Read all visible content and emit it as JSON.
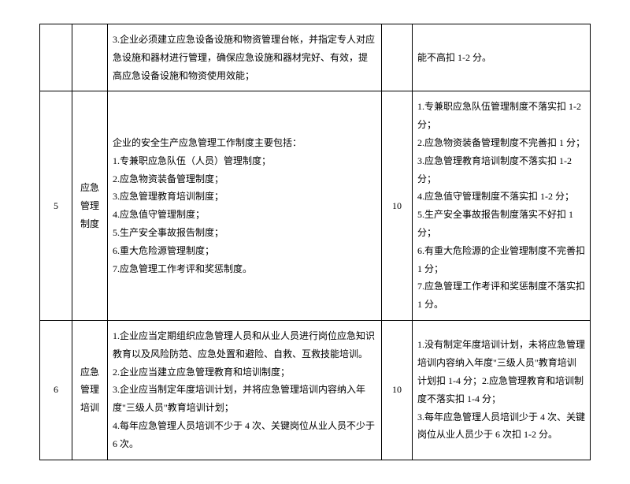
{
  "rows": [
    {
      "num": "",
      "cat": "",
      "desc_intro": "",
      "desc_items": [
        "3.企业必须建立应急设备设施和物资管理台帐，并指定专人对应急设施和器材进行管理，确保应急设施和器材完好、有效，提高应急设备设施和物资使用效能；"
      ],
      "score": "",
      "criteria_items": [
        "能不高扣 1-2 分。"
      ]
    },
    {
      "num": "5",
      "cat": "应急管理制度",
      "desc_intro": "企业的安全生产应急管理工作制度主要包括：",
      "desc_items": [
        "1.专兼职应急队伍（人员）管理制度；",
        "2.应急物资装备管理制度；",
        "3.应急管理教育培训制度；",
        "4.应急值守管理制度；",
        "5.生产安全事故报告制度；",
        "6.重大危险源管理制度；",
        "7.应急管理工作考评和奖惩制度。"
      ],
      "score": "10",
      "criteria_items": [
        "1.专兼职应急队伍管理制度不落实扣 1-2 分；",
        "2.应急物资装备管理制度不完善扣 1 分；",
        "3.应急管理教育培训制度不落实扣 1-2 分；",
        "4.应急值守管理制度不落实扣 1-2 分；",
        "5.生产安全事故报告制度落实不好扣 1 分；",
        "6.有重大危险源的企业管理制度不完善扣 1 分；",
        "7.应急管理工作考评和奖惩制度不落实扣 1 分。"
      ]
    },
    {
      "num": "6",
      "cat": "应急管理培训",
      "desc_intro": "",
      "desc_items": [
        "1.企业应当定期组织应急管理人员和从业人员进行岗位应急知识教育以及风险防范、应急处置和避险、自救、互救技能培训。",
        "2.企业应当建立应急管理教育和培训制度；",
        "3.企业应当制定年度培训计划，并将应急管理培训内容纳入年度\"三级人员\"教育培训计划；",
        "4.每年应急管理人员培训不少于 4 次、关键岗位从业人员不少于6 次。"
      ],
      "score": "10",
      "criteria_items": [
        "1.没有制定年度培训计划，未将应急管理培训内容纳入年度\"三级人员\"教育培训计划扣 1-4 分；2.应急管理教育和培训制度不落实扣 1-4 分；",
        "3.每年应急管理人员培训少于 4 次、关键岗位从业人员少于 6 次扣 1-2 分。"
      ]
    }
  ]
}
